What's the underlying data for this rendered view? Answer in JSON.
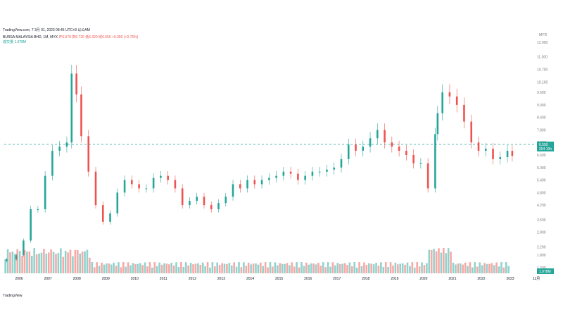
{
  "header": {
    "top": "TradingView.com, 7 3月 01, 2023 08:45 UTC+8 以公AM",
    "symbol": "BURSA MALAYSIA BHD, 1M, MYX",
    "ohlc_text": "开6.570 高6.720 低6.320 收6.550 +0.050 (+0.76%)",
    "volume_label": "成交量",
    "volume_value": "1.978M"
  },
  "price_label": "6.550",
  "price_label_sub": "254 10h",
  "volume_label_right": "1.978M",
  "axis_unit": "MYR",
  "footer": "TradingView",
  "chart_data": {
    "type": "candlestick",
    "title": "BURSA MALAYSIA BHD, 1M, MYX",
    "yticks": [
      1.2,
      1.8,
      2.2,
      2.9,
      3.5,
      4.2,
      4.8,
      5.4,
      6.0,
      6.6,
      7.2,
      7.8,
      8.4,
      9.0,
      9.6,
      10.1,
      10.7,
      11.3,
      12.0
    ],
    "ytick_labels": [
      "1.200",
      "1.800",
      "2.200",
      "2.900",
      "3.500",
      "4.200",
      "4.800",
      "5.400",
      "6.000",
      "6.600",
      "7.200",
      "7.800",
      "8.400",
      "9.000",
      "9.600",
      "10.100",
      "10.700",
      "11.300",
      "12.000"
    ],
    "xticks": [
      "2006",
      "2007",
      "2008",
      "2009",
      "2010",
      "2011",
      "2012",
      "2013",
      "2014",
      "2015",
      "2016",
      "2017",
      "2018",
      "2019",
      "2020",
      "2021",
      "2022",
      "2023",
      "11月"
    ],
    "last_price": 6.55,
    "close_series": [
      {
        "date": "2005-08",
        "close": 1.6
      },
      {
        "date": "2005-12",
        "close": 1.8
      },
      {
        "date": "2006-03",
        "close": 2.5
      },
      {
        "date": "2006-06",
        "close": 4.0
      },
      {
        "date": "2006-09",
        "close": 4.0
      },
      {
        "date": "2006-12",
        "close": 5.6
      },
      {
        "date": "2007-03",
        "close": 6.8
      },
      {
        "date": "2007-06",
        "close": 7.0
      },
      {
        "date": "2007-09",
        "close": 7.2
      },
      {
        "date": "2007-11",
        "close": 10.5
      },
      {
        "date": "2008-01",
        "close": 9.5
      },
      {
        "date": "2008-03",
        "close": 7.5
      },
      {
        "date": "2008-06",
        "close": 5.8
      },
      {
        "date": "2008-09",
        "close": 4.2
      },
      {
        "date": "2008-12",
        "close": 3.4
      },
      {
        "date": "2009-03",
        "close": 3.8
      },
      {
        "date": "2009-06",
        "close": 4.8
      },
      {
        "date": "2009-09",
        "close": 5.4
      },
      {
        "date": "2009-12",
        "close": 5.2
      },
      {
        "date": "2010-03",
        "close": 5.0
      },
      {
        "date": "2010-06",
        "close": 5.0
      },
      {
        "date": "2010-09",
        "close": 5.5
      },
      {
        "date": "2010-12",
        "close": 5.6
      },
      {
        "date": "2011-03",
        "close": 5.4
      },
      {
        "date": "2011-06",
        "close": 5.0
      },
      {
        "date": "2011-09",
        "close": 4.2
      },
      {
        "date": "2011-12",
        "close": 4.4
      },
      {
        "date": "2012-03",
        "close": 4.6
      },
      {
        "date": "2012-06",
        "close": 4.2
      },
      {
        "date": "2012-09",
        "close": 4.0
      },
      {
        "date": "2012-12",
        "close": 4.3
      },
      {
        "date": "2013-03",
        "close": 4.6
      },
      {
        "date": "2013-06",
        "close": 5.2
      },
      {
        "date": "2013-09",
        "close": 5.0
      },
      {
        "date": "2013-12",
        "close": 5.4
      },
      {
        "date": "2014-03",
        "close": 5.2
      },
      {
        "date": "2014-06",
        "close": 5.4
      },
      {
        "date": "2014-09",
        "close": 5.5
      },
      {
        "date": "2014-12",
        "close": 5.6
      },
      {
        "date": "2015-03",
        "close": 5.8
      },
      {
        "date": "2015-06",
        "close": 5.7
      },
      {
        "date": "2015-09",
        "close": 5.4
      },
      {
        "date": "2015-12",
        "close": 5.6
      },
      {
        "date": "2016-03",
        "close": 5.8
      },
      {
        "date": "2016-06",
        "close": 5.8
      },
      {
        "date": "2016-09",
        "close": 5.9
      },
      {
        "date": "2016-12",
        "close": 6.0
      },
      {
        "date": "2017-03",
        "close": 6.4
      },
      {
        "date": "2017-06",
        "close": 7.1
      },
      {
        "date": "2017-09",
        "close": 6.8
      },
      {
        "date": "2017-12",
        "close": 7.0
      },
      {
        "date": "2018-03",
        "close": 7.4
      },
      {
        "date": "2018-06",
        "close": 7.8
      },
      {
        "date": "2018-09",
        "close": 7.2
      },
      {
        "date": "2018-12",
        "close": 7.0
      },
      {
        "date": "2019-03",
        "close": 6.8
      },
      {
        "date": "2019-06",
        "close": 6.6
      },
      {
        "date": "2019-09",
        "close": 6.2
      },
      {
        "date": "2019-12",
        "close": 6.2
      },
      {
        "date": "2020-03",
        "close": 5.0
      },
      {
        "date": "2020-06",
        "close": 7.6
      },
      {
        "date": "2020-07",
        "close": 8.6
      },
      {
        "date": "2020-09",
        "close": 9.6
      },
      {
        "date": "2020-12",
        "close": 9.4
      },
      {
        "date": "2021-03",
        "close": 9.0
      },
      {
        "date": "2021-06",
        "close": 8.2
      },
      {
        "date": "2021-09",
        "close": 7.2
      },
      {
        "date": "2021-12",
        "close": 6.8
      },
      {
        "date": "2022-03",
        "close": 6.9
      },
      {
        "date": "2022-06",
        "close": 6.4
      },
      {
        "date": "2022-09",
        "close": 6.5
      },
      {
        "date": "2022-12",
        "close": 6.8
      },
      {
        "date": "2023-02",
        "close": 6.55
      }
    ],
    "volume_series": [],
    "grid": false,
    "legend": "none"
  }
}
